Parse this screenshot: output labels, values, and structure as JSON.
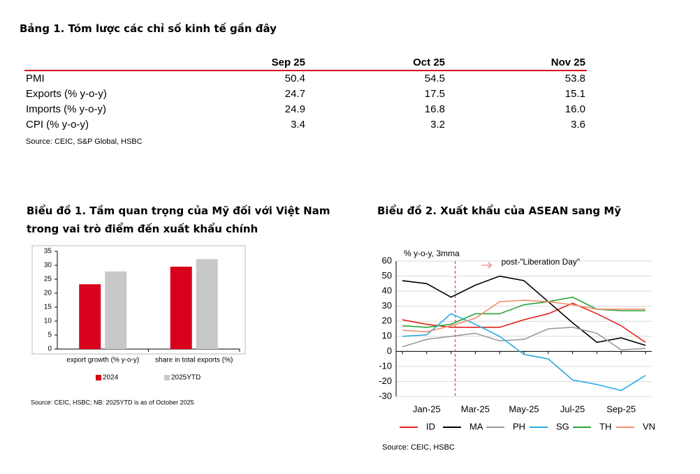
{
  "table": {
    "title": "Bảng 1. Tóm lược các chỉ số kinh tế gần đây",
    "columns": [
      "Sep 25",
      "Oct 25",
      "Nov 25"
    ],
    "rows": [
      {
        "label": "PMI",
        "values": [
          "50.4",
          "54.5",
          "53.8"
        ]
      },
      {
        "label": "Exports (% y-o-y)",
        "values": [
          "24.7",
          "17.5",
          "15.1"
        ]
      },
      {
        "label": "Imports (% y-o-y)",
        "values": [
          "24.9",
          "16.8",
          "16.0"
        ]
      },
      {
        "label": "CPI (% y-o-y)",
        "values": [
          "3.4",
          "3.2",
          "3.6"
        ]
      }
    ],
    "source": "Source: CEIC, S&P Global, HSBC"
  },
  "chart_data": [
    {
      "type": "bar",
      "title": "Biểu đồ 1. Tầm quan trọng của Mỹ đối với Việt Nam trong vai trò điểm đến xuất khẩu chính",
      "categories": [
        "export growth (% y-o-y)",
        "share in total exports (%)"
      ],
      "series": [
        {
          "name": "2024",
          "color": "#d9001b",
          "values": [
            23.2,
            29.5
          ]
        },
        {
          "name": "2025YTD",
          "color": "#c8c8c8",
          "values": [
            27.8,
            32.2
          ]
        }
      ],
      "ylim": [
        0,
        35
      ],
      "yticks": [
        0,
        5,
        10,
        15,
        20,
        25,
        30,
        35
      ],
      "source": "Source: CEIC, HSBC; NB: 2025YTD is as of October 2025"
    },
    {
      "type": "line",
      "title": "Biểu đồ 2. Xuất khẩu của ASEAN sang Mỹ",
      "y_label": "% y-o-y, 3mma",
      "annotation": "post-\"Liberation Day\"",
      "categories": [
        null,
        "Jan-25",
        null,
        "Mar-25",
        null,
        "May-25",
        null,
        "Jul-25",
        null,
        "Sep-25",
        null
      ],
      "series": [
        {
          "name": "ID",
          "color": "#e2231a",
          "values": [
            21,
            18,
            16,
            16,
            16,
            21,
            25,
            32,
            25,
            17,
            6
          ]
        },
        {
          "name": "MA",
          "color": "#000000",
          "values": [
            47,
            45,
            36,
            44,
            50,
            47,
            33,
            19,
            6,
            9,
            4
          ]
        },
        {
          "name": "PH",
          "color": "#9a9a9a",
          "values": [
            3,
            8,
            10,
            12,
            7,
            8,
            15,
            16,
            12,
            1,
            2
          ]
        },
        {
          "name": "SG",
          "color": "#2aa9e0",
          "values": [
            10,
            11,
            25,
            18,
            10,
            -2,
            -5,
            -19,
            -22,
            -26,
            -16
          ]
        },
        {
          "name": "TH",
          "color": "#2ca33a",
          "values": [
            17,
            16,
            18,
            25,
            25,
            31,
            33,
            36,
            28,
            27,
            27
          ]
        },
        {
          "name": "VN",
          "color": "#f0906c",
          "values": [
            14,
            13,
            17,
            22,
            33,
            34,
            33,
            31,
            28,
            28,
            28
          ]
        }
      ],
      "ylim": [
        -30,
        60
      ],
      "yticks": [
        -30,
        -20,
        -10,
        0,
        10,
        20,
        30,
        40,
        50,
        60
      ],
      "grid": true,
      "source": "Source: CEIC, HSBC"
    }
  ]
}
